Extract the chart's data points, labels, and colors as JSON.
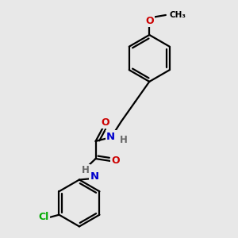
{
  "background_color": "#e8e8e8",
  "atom_color_N": "#0000cc",
  "atom_color_O": "#cc0000",
  "atom_color_Cl": "#00aa00",
  "atom_color_H": "#666666",
  "line_color": "#000000",
  "line_width": 1.6,
  "figsize": [
    3.0,
    3.0
  ],
  "dpi": 100,
  "xlim": [
    0,
    10
  ],
  "ylim": [
    0,
    10
  ]
}
